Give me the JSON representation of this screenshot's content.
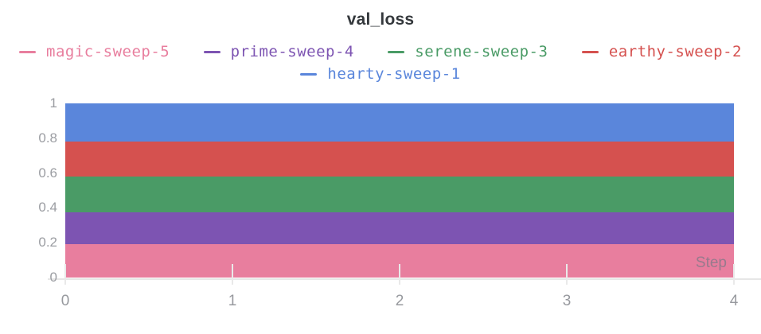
{
  "chart_data": {
    "type": "area",
    "stacked": true,
    "title": "val_loss",
    "xlabel": "Step",
    "ylabel": "",
    "x": [
      0,
      1,
      2,
      3,
      4
    ],
    "series": [
      {
        "name": "magic-sweep-5",
        "color": "#E87E9E",
        "values": [
          0.19,
          0.19,
          0.19,
          0.19,
          0.19
        ]
      },
      {
        "name": "prime-sweep-4",
        "color": "#7D54B2",
        "values": [
          0.185,
          0.185,
          0.185,
          0.185,
          0.185
        ]
      },
      {
        "name": "serene-sweep-3",
        "color": "#4A9B66",
        "values": [
          0.205,
          0.205,
          0.205,
          0.205,
          0.205
        ]
      },
      {
        "name": "earthy-sweep-2",
        "color": "#D5514F",
        "values": [
          0.2,
          0.2,
          0.2,
          0.2,
          0.2
        ]
      },
      {
        "name": "hearty-sweep-1",
        "color": "#5A86DB",
        "values": [
          0.22,
          0.22,
          0.22,
          0.22,
          0.22
        ]
      }
    ],
    "stack_order_bottom_to_top": [
      "magic-sweep-5",
      "prime-sweep-4",
      "serene-sweep-3",
      "earthy-sweep-2",
      "hearty-sweep-1"
    ],
    "cumulative_tops": [
      0.19,
      0.375,
      0.58,
      0.78,
      1.0
    ],
    "xlim": [
      0,
      4
    ],
    "ylim": [
      0,
      1
    ],
    "xticks": [
      "0",
      "1",
      "2",
      "3",
      "4"
    ],
    "yticks": [
      "0",
      "0.2",
      "0.4",
      "0.6",
      "0.8",
      "1"
    ],
    "legend_position": "top",
    "grid": "x-tick-marks-only",
    "axis_color": "#e6e6e6",
    "tick_label_color": "#97999e"
  }
}
